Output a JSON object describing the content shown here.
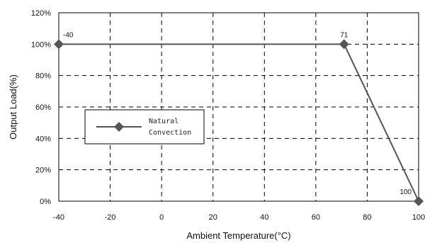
{
  "chart_data": {
    "type": "line",
    "title": "",
    "xlabel": "Ambient Temperature(°C)",
    "ylabel": "Output Load(%)",
    "xlim": [
      -40,
      100
    ],
    "ylim": [
      0,
      120
    ],
    "x_ticks": [
      -40,
      -20,
      0,
      20,
      40,
      60,
      80,
      100
    ],
    "x_tick_labels": [
      "-40",
      "-20",
      "0",
      "20",
      "40",
      "60",
      "80",
      "100"
    ],
    "y_ticks": [
      0,
      20,
      40,
      60,
      80,
      100,
      120
    ],
    "y_tick_labels": [
      "0%",
      "20%",
      "40%",
      "60%",
      "80%",
      "100%",
      "120%"
    ],
    "grid": true,
    "legend_position": "middle-left",
    "legend_lines": [
      "Natural",
      "Convection"
    ],
    "series": [
      {
        "name": "Natural Convection",
        "color": "#555555",
        "marker": "diamond",
        "x": [
          -40,
          71,
          100
        ],
        "y": [
          100,
          100,
          0
        ],
        "point_labels": [
          "-40",
          "71",
          "100"
        ]
      }
    ]
  }
}
